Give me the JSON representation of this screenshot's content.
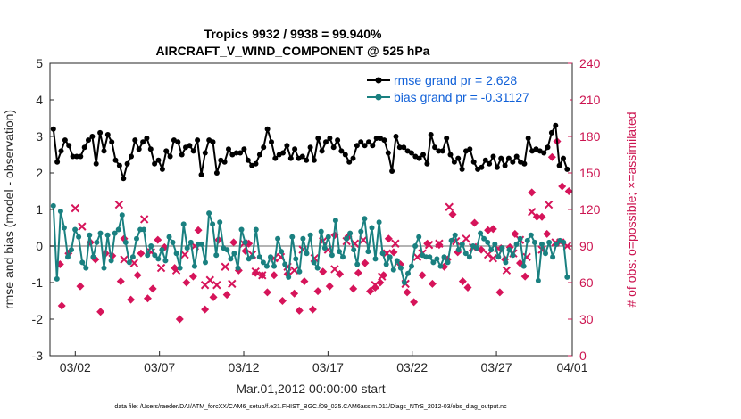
{
  "chart_data": {
    "type": "line",
    "title": "Tropics 9932 / 9938 = 99.940%",
    "subtitle": "AIRCRAFT_V_WIND_COMPONENT @ 525 hPa",
    "xlabel": "Mar.01,2012 00:00:00 start",
    "ylabel": "rmse and bias (model - observation)",
    "y2label": "# of obs: o=possible; ×=assimilated",
    "footer": "data file: /Users/raeder/DAI/ATM_forcXX/CAM6_setup/f.e21.FHIST_BGC.f09_025.CAM6assim.011/Diags_NTrS_2012-03/obs_diag_output.nc",
    "xlim": [
      0.5,
      31.5
    ],
    "ylim": [
      -3,
      5
    ],
    "y2lim": [
      0,
      240
    ],
    "x_ticks": [
      {
        "x": 2,
        "label": "03/02"
      },
      {
        "x": 7,
        "label": "03/07"
      },
      {
        "x": 12,
        "label": "03/12"
      },
      {
        "x": 17,
        "label": "03/17"
      },
      {
        "x": 22,
        "label": "03/22"
      },
      {
        "x": 27,
        "label": "03/27"
      },
      {
        "x": 32,
        "label": "04/01"
      }
    ],
    "y_ticks": [
      "-3",
      "-2",
      "-1",
      "0",
      "1",
      "2",
      "3",
      "4",
      "5"
    ],
    "y2_ticks": [
      "0",
      "30",
      "60",
      "90",
      "120",
      "150",
      "180",
      "210",
      "240"
    ],
    "legend": {
      "location": "top-right",
      "entries": [
        "rmse grand pr = 2.628",
        "bias grand pr = -0.31127"
      ]
    },
    "colors": {
      "rmse": "#000000",
      "bias": "#1a8080",
      "obs": "#d6145a",
      "zero_line": "#b4b4b4",
      "right_axis": "#cc1450"
    },
    "rmse": [
      3.2,
      2.3,
      2.6,
      2.9,
      2.75,
      2.45,
      2.45,
      2.45,
      2.7,
      2.9,
      3.0,
      2.25,
      3.1,
      2.6,
      3.05,
      2.85,
      2.35,
      2.2,
      1.85,
      2.25,
      2.45,
      2.9,
      2.65,
      2.85,
      2.95,
      2.65,
      2.25,
      2.35,
      2.1,
      2.6,
      2.45,
      2.9,
      2.85,
      2.5,
      2.7,
      2.75,
      2.6,
      2.9,
      1.95,
      2.55,
      2.9,
      2.85,
      2.0,
      2.35,
      2.3,
      2.65,
      2.5,
      2.55,
      2.55,
      2.65,
      2.35,
      2.2,
      2.25,
      2.5,
      2.7,
      3.2,
      2.85,
      2.4,
      2.5,
      2.55,
      2.75,
      2.4,
      2.65,
      2.4,
      2.45,
      2.35,
      2.7,
      2.35,
      2.95,
      2.6,
      2.85,
      2.95,
      2.7,
      2.9,
      2.6,
      2.5,
      2.3,
      2.4,
      2.75,
      2.85,
      2.75,
      2.85,
      2.75,
      2.95,
      2.95,
      2.9,
      2.55,
      2.05,
      3.0,
      2.7,
      2.7,
      2.6,
      2.55,
      2.45,
      2.4,
      2.5,
      2.25,
      3.05,
      2.7,
      2.6,
      2.6,
      2.95,
      2.5,
      2.3,
      2.4,
      2.1,
      2.6,
      2.65,
      2.3,
      2.1,
      2.15,
      2.35,
      2.25,
      2.45,
      2.15,
      2.4,
      2.2,
      2.4,
      2.3,
      2.45,
      2.3,
      2.25,
      2.95,
      2.6,
      2.65,
      2.6,
      2.55,
      2.7,
      3.1,
      3.3,
      2.2,
      2.4,
      2.1
    ],
    "bias": [
      1.1,
      -0.9,
      0.95,
      0.5,
      -0.3,
      -0.1,
      0.45,
      0.25,
      -0.45,
      -0.6,
      0.3,
      -0.3,
      0.1,
      0.35,
      -0.6,
      0.3,
      -0.4,
      0.35,
      0.45,
      0.85,
      0.1,
      -0.45,
      -0.3,
      0.2,
      0.45,
      0.45,
      -0.25,
      0.0,
      -0.25,
      -0.35,
      -0.1,
      -0.4,
      0.25,
      0.1,
      -0.2,
      -0.6,
      0.6,
      -0.05,
      0.1,
      -0.55,
      0.05,
      0.05,
      -0.45,
      0.9,
      0.6,
      -0.25,
      0.65,
      -0.05,
      -0.1,
      -0.35,
      -0.2,
      -0.6,
      0.45,
      0.1,
      -0.35,
      -0.3,
      0.45,
      -0.3,
      -0.45,
      -0.55,
      -0.3,
      -0.55,
      0.2,
      -0.15,
      -0.5,
      -0.85,
      0.25,
      -0.35,
      -0.7,
      0.2,
      -0.2,
      0.3,
      -0.45,
      -0.6,
      0.4,
      -0.05,
      0.25,
      -0.25,
      0.7,
      -0.15,
      -0.3,
      0.2,
      0.35,
      -0.1,
      -0.5,
      0.4,
      0.75,
      -0.15,
      0.5,
      -0.35,
      0.65,
      -0.2,
      -0.5,
      -0.3,
      -0.65,
      -0.4,
      -0.6,
      -1.0,
      -0.75,
      -0.55,
      0.0,
      0.25,
      -0.25,
      -0.3,
      -0.3,
      -0.45,
      -0.35,
      -0.55,
      -0.3,
      -0.45,
      0.15,
      0.3,
      -0.1,
      0.05,
      -0.2,
      -0.3,
      0.0,
      -0.05,
      0.35,
      0.2,
      0.1,
      -0.1,
      0.05,
      -0.3,
      -0.05,
      -0.45,
      -0.1,
      -0.25,
      0.05,
      0.2,
      -0.55,
      0.15,
      0.3,
      0.1,
      -0.95,
      0.05,
      -0.2,
      0.1,
      -0.3,
      0.05,
      0.15,
      0.1,
      -0.85
    ],
    "bias_end_x": 31.2,
    "obs_possible": [
      [
        1.1,
        75
      ],
      [
        1.2,
        41
      ],
      [
        1.6,
        84
      ],
      [
        2.3,
        57
      ],
      [
        2.9,
        93
      ],
      [
        3.2,
        79
      ],
      [
        3.5,
        36
      ],
      [
        3.8,
        84
      ],
      [
        4.2,
        82
      ],
      [
        4.7,
        61
      ],
      [
        4.9,
        96
      ],
      [
        5.3,
        46
      ],
      [
        5.7,
        66
      ],
      [
        5.9,
        84
      ],
      [
        6.3,
        47
      ],
      [
        6.6,
        55
      ],
      [
        6.9,
        95
      ],
      [
        7.3,
        89
      ],
      [
        7.9,
        72
      ],
      [
        8.2,
        30
      ],
      [
        8.6,
        60
      ],
      [
        9.0,
        65
      ],
      [
        9.3,
        103
      ],
      [
        9.7,
        38
      ],
      [
        10.2,
        48
      ],
      [
        10.5,
        95
      ],
      [
        11.0,
        50
      ],
      [
        11.4,
        93
      ],
      [
        11.7,
        70
      ],
      [
        12.1,
        86
      ],
      [
        12.3,
        92
      ],
      [
        12.7,
        68
      ],
      [
        13.1,
        66
      ],
      [
        13.4,
        52
      ],
      [
        13.8,
        66
      ],
      [
        14.3,
        45
      ],
      [
        14.6,
        67
      ],
      [
        15.0,
        51
      ],
      [
        15.3,
        37
      ],
      [
        15.6,
        61
      ],
      [
        16.1,
        38
      ],
      [
        16.4,
        53
      ],
      [
        16.7,
        69
      ],
      [
        17.1,
        57
      ],
      [
        17.4,
        99
      ],
      [
        17.7,
        67
      ],
      [
        18.2,
        98
      ],
      [
        18.5,
        55
      ],
      [
        18.8,
        68
      ],
      [
        19.2,
        76
      ],
      [
        19.5,
        53
      ],
      [
        19.8,
        56
      ],
      [
        20.1,
        60
      ],
      [
        20.3,
        66
      ],
      [
        20.6,
        96
      ],
      [
        20.9,
        85
      ],
      [
        21.3,
        75
      ],
      [
        21.7,
        52
      ],
      [
        22.1,
        44
      ],
      [
        22.6,
        66
      ],
      [
        22.9,
        92
      ],
      [
        23.2,
        59
      ],
      [
        23.6,
        91
      ],
      [
        23.9,
        73
      ],
      [
        24.1,
        79
      ],
      [
        24.4,
        116
      ],
      [
        24.7,
        85
      ],
      [
        25.0,
        61
      ],
      [
        25.3,
        56
      ],
      [
        25.7,
        109
      ],
      [
        26.1,
        87
      ],
      [
        26.5,
        103
      ],
      [
        26.8,
        104
      ],
      [
        27.2,
        52
      ],
      [
        27.5,
        79
      ],
      [
        27.8,
        89
      ],
      [
        28.1,
        100
      ],
      [
        28.4,
        76
      ],
      [
        28.7,
        65
      ],
      [
        29.1,
        134
      ],
      [
        29.4,
        114
      ],
      [
        29.7,
        114
      ],
      [
        30.0,
        100
      ],
      [
        30.3,
        163
      ],
      [
        30.6,
        176
      ],
      [
        30.9,
        139
      ],
      [
        31.3,
        135
      ]
    ],
    "obs_assim": [
      [
        2.0,
        121
      ],
      [
        2.4,
        106
      ],
      [
        4.6,
        124
      ],
      [
        4.9,
        79
      ],
      [
        5.5,
        76
      ],
      [
        6.1,
        112
      ],
      [
        6.5,
        85
      ],
      [
        7.1,
        72
      ],
      [
        8.0,
        70
      ],
      [
        8.5,
        83
      ],
      [
        9.1,
        90
      ],
      [
        9.7,
        58
      ],
      [
        10.0,
        62
      ],
      [
        10.4,
        58
      ],
      [
        10.9,
        73
      ],
      [
        11.3,
        59
      ],
      [
        12.0,
        92
      ],
      [
        12.5,
        83
      ],
      [
        12.7,
        69
      ],
      [
        13.1,
        66
      ],
      [
        13.8,
        80
      ],
      [
        14.2,
        81
      ],
      [
        14.6,
        73
      ],
      [
        15.0,
        70
      ],
      [
        15.5,
        87
      ],
      [
        16.2,
        80
      ],
      [
        16.7,
        94
      ],
      [
        17.0,
        87
      ],
      [
        17.4,
        71
      ],
      [
        18.1,
        94
      ],
      [
        18.6,
        92
      ],
      [
        19.1,
        95
      ],
      [
        19.8,
        58
      ],
      [
        20.2,
        65
      ],
      [
        20.5,
        84
      ],
      [
        21.0,
        92
      ],
      [
        21.6,
        59
      ],
      [
        22.3,
        81
      ],
      [
        22.6,
        84
      ],
      [
        23.0,
        91
      ],
      [
        23.6,
        92
      ],
      [
        24.2,
        122
      ],
      [
        24.6,
        94
      ],
      [
        25.2,
        96
      ],
      [
        25.6,
        89
      ],
      [
        26.5,
        83
      ],
      [
        26.8,
        80
      ],
      [
        27.1,
        88
      ],
      [
        27.6,
        70
      ],
      [
        28.0,
        84
      ],
      [
        28.4,
        95
      ],
      [
        28.8,
        81
      ],
      [
        29.1,
        118
      ],
      [
        29.7,
        87
      ],
      [
        30.1,
        124
      ],
      [
        30.5,
        93
      ],
      [
        30.8,
        93
      ],
      [
        31.2,
        90
      ]
    ]
  }
}
